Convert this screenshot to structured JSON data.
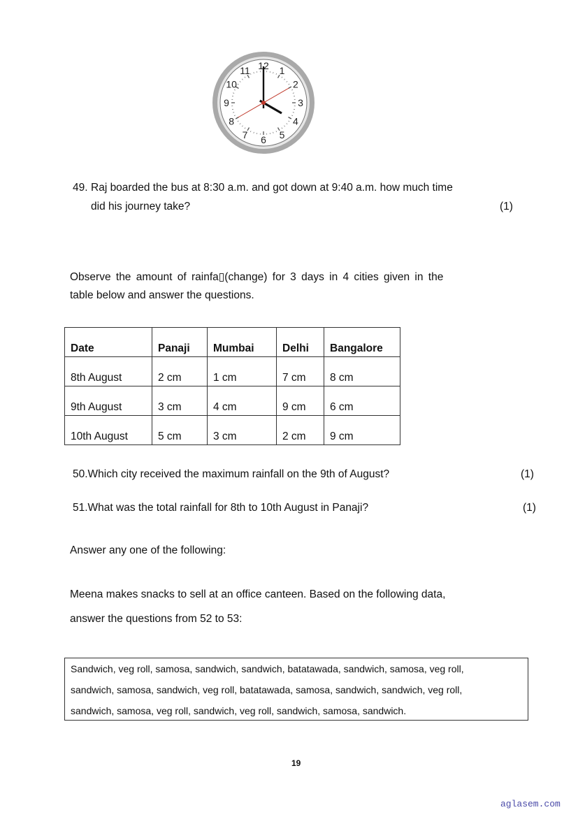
{
  "clock": {
    "hour": 4,
    "minute": 0,
    "second": 10,
    "numbers": [
      "12",
      "1",
      "2",
      "3",
      "4",
      "5",
      "6",
      "7",
      "8",
      "9",
      "10",
      "11"
    ],
    "hand_color": "#111111",
    "second_hand_color": "#c0392b",
    "rim_color": "#a9a9a9"
  },
  "q49": {
    "number": "49.",
    "text1": "Raj boarded the bus at 8:30 a.m. and got down at 9:40 a.m. how much time",
    "text2": "did his journey take?",
    "marks": "(1)"
  },
  "intro": {
    "line1": "Observe the amount of rainfa▯(change) for 3 days in 4 cities given in the",
    "line2": "table below and answer the questions."
  },
  "table": {
    "headers": [
      "Date",
      "Panaji",
      "Mumbai",
      "Delhi",
      "Bangalore"
    ],
    "rows": [
      [
        "8th August",
        "2 cm",
        "1 cm",
        "7 cm",
        "8 cm"
      ],
      [
        "9th August",
        "3 cm",
        "4 cm",
        "9 cm",
        "6 cm"
      ],
      [
        "10th August",
        "5 cm",
        "3 cm",
        "2 cm",
        "9 cm"
      ]
    ]
  },
  "q50": {
    "text": "50.Which city received the maximum rainfall on the 9th of August?",
    "marks": "(1)"
  },
  "q51": {
    "text": "51.What was the total rainfall for 8th to 10th August in Panaji?",
    "marks": "(1)"
  },
  "choice": "Answer any one of the following:",
  "meena": {
    "line1": "Meena makes snacks to sell at an office canteen. Based on the following data,",
    "line2": "answer the questions from 52 to 53:"
  },
  "snacks": [
    "Sandwich, veg roll, samosa, sandwich, sandwich, batatawada, sandwich, samosa, veg roll,",
    "sandwich, samosa, sandwich, veg roll, batatawada, samosa, sandwich, sandwich, veg roll,",
    "sandwich, samosa, veg roll, sandwich, veg roll, sandwich, samosa, sandwich."
  ],
  "page_number": "19",
  "watermark": "aglasem.com"
}
